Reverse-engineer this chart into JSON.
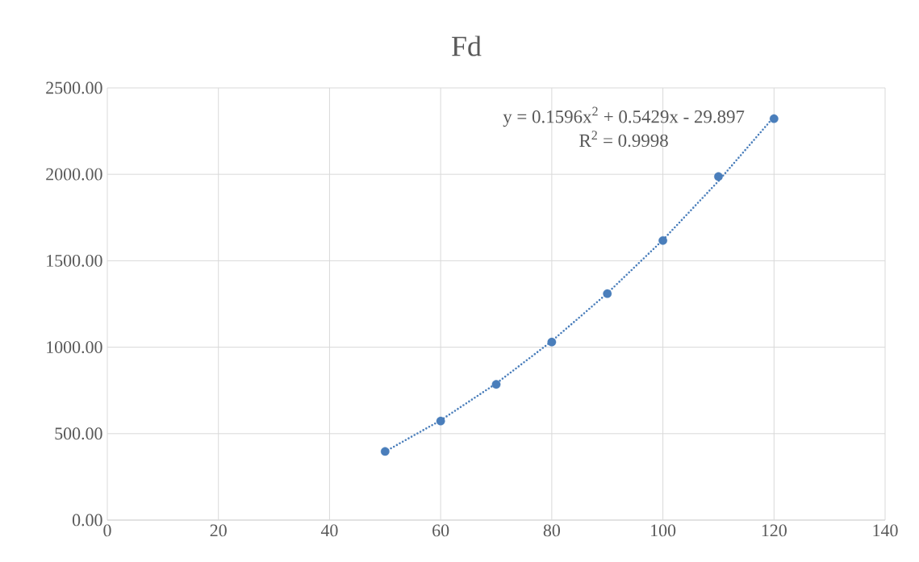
{
  "chart_data": {
    "type": "scatter",
    "title": "Fd",
    "xlim": [
      0,
      140
    ],
    "xticks": [
      0,
      20,
      40,
      60,
      80,
      100,
      120,
      140
    ],
    "ylim": [
      0,
      2500
    ],
    "yticks": [
      {
        "value": 0,
        "label": "0.00"
      },
      {
        "value": 500,
        "label": "500.00"
      },
      {
        "value": 1000,
        "label": "1000.00"
      },
      {
        "value": 1500,
        "label": "1500.00"
      },
      {
        "value": 2000,
        "label": "2000.00"
      },
      {
        "value": 2500,
        "label": "2500.00"
      }
    ],
    "grid": true,
    "series": [
      {
        "type": "scatter",
        "color": "#4a7ebb",
        "marker": "circle",
        "x": [
          50,
          60,
          70,
          80,
          90,
          100,
          110,
          120
        ],
        "values": [
          397,
          573,
          785,
          1030,
          1310,
          1617,
          1987,
          2322
        ]
      },
      {
        "type": "line",
        "color": "#4a7ebb",
        "marker": "none",
        "line_style": "dotted",
        "x": [
          50,
          60,
          70,
          80,
          90,
          100,
          110,
          120
        ],
        "values": [
          396,
          577,
          790,
          1035,
          1312,
          1620,
          1961,
          2333
        ]
      }
    ],
    "annotations": [
      "y = 0.1596x$^{2}$ + 0.5429x - 29.897",
      "R$^{2}$ = 0.9998"
    ]
  }
}
